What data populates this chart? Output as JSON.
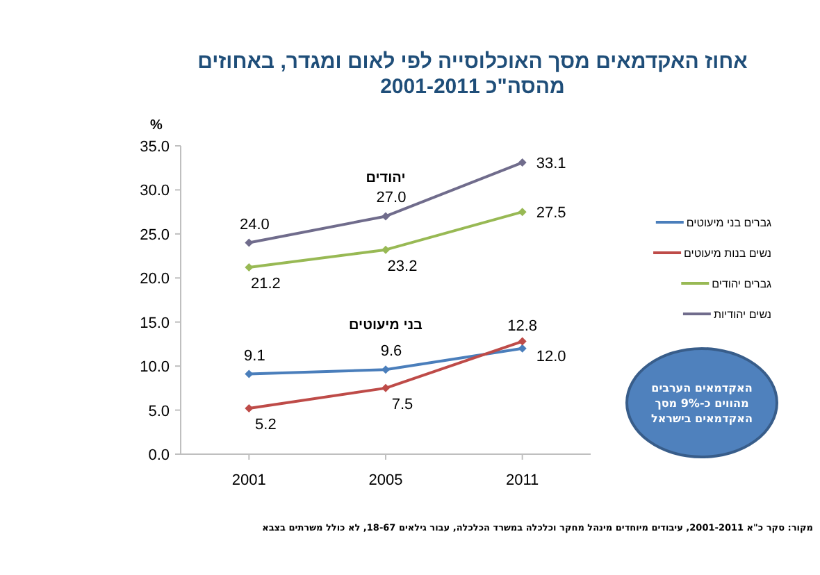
{
  "chart_data": {
    "type": "line",
    "title": "אחוז האקדמאים מסך האוכלוסייה לפי לאום ומגדר, באחוזים מהסה\"כ 2001-2011",
    "ylabel": "%",
    "categories": [
      "2001",
      "2005",
      "2011"
    ],
    "series": [
      {
        "name": "גברים בני מיעוטים",
        "color": "#4a7ebb",
        "values": [
          9.1,
          9.6,
          12.0
        ],
        "value_labels": [
          "9.1",
          "9.6",
          "12.0"
        ]
      },
      {
        "name": "נשים בנות מיעוטים",
        "color": "#be4b48",
        "values": [
          5.2,
          7.5,
          12.8
        ],
        "value_labels": [
          "5.2",
          "7.5",
          "12.8"
        ]
      },
      {
        "name": "גברים יהודים",
        "color": "#98b954",
        "values": [
          21.2,
          23.2,
          27.5
        ],
        "value_labels": [
          "21.2",
          "23.2",
          "27.5"
        ]
      },
      {
        "name": "נשים יהודיות",
        "color": "#706c8c",
        "values": [
          24.0,
          27.0,
          33.1
        ],
        "value_labels": [
          "24.0",
          "27.0",
          "33.1"
        ]
      }
    ],
    "ylim": [
      0,
      35
    ],
    "yticks": [
      {
        "value": 0,
        "label": "0.0"
      },
      {
        "value": 5,
        "label": "5.0"
      },
      {
        "value": 10,
        "label": "10.0"
      },
      {
        "value": 15,
        "label": "15.0"
      },
      {
        "value": 20,
        "label": "20.0"
      },
      {
        "value": 25,
        "label": "25.0"
      },
      {
        "value": 30,
        "label": "30.0"
      },
      {
        "value": 35,
        "label": "35.0"
      }
    ],
    "marker": "diamond",
    "legend": "right",
    "grid": false,
    "annotations": [
      "יהודים",
      "בני מיעוטים",
      "האקדמאים הערבים מהווים כ-9% מסך האקדמאים בישראל",
      "מקור: סקר כ\"א 2001-2011, עיבודים מיוחדים מינהל מחקר וכלכלה במשרד הכלכלה, עבור גילאים 18-67, לא כולל משרתים בצבא"
    ]
  }
}
